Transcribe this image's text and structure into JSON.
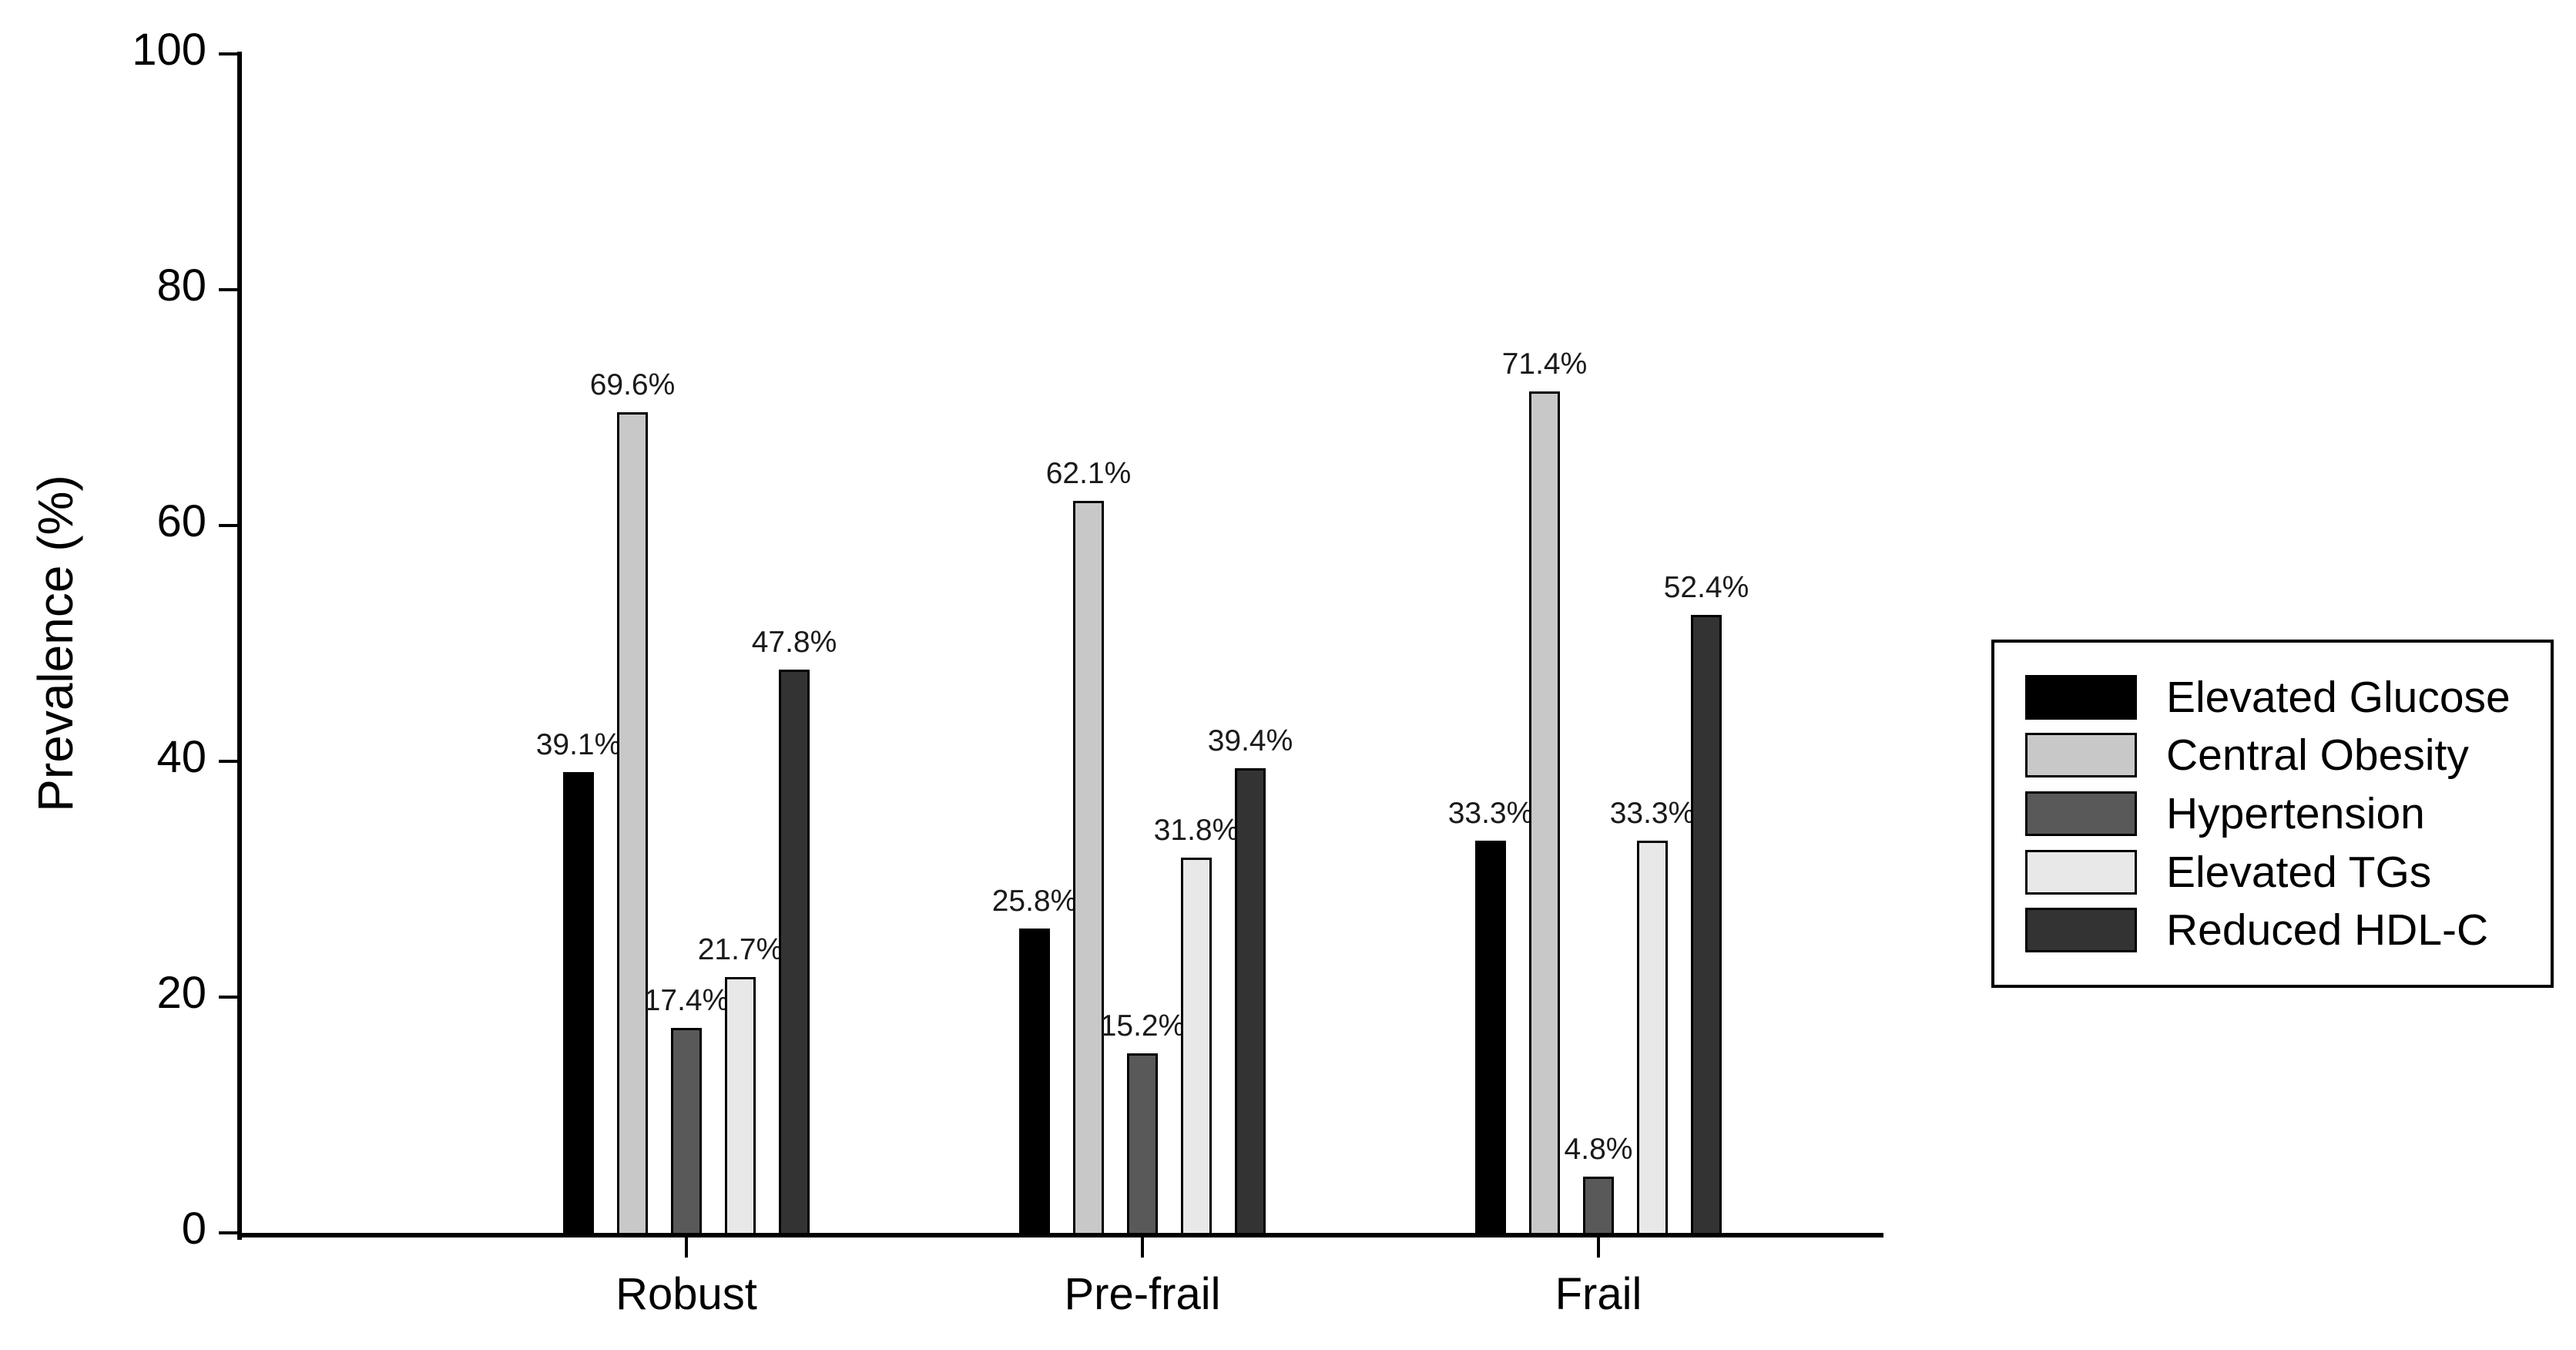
{
  "chart_data": {
    "type": "bar",
    "title": "",
    "xlabel": "",
    "ylabel": "Prevalence (%)",
    "ylim": [
      0,
      100
    ],
    "yticks": [
      0,
      20,
      40,
      60,
      80,
      100
    ],
    "grid": false,
    "background": "#ffffff",
    "axis_color": "#000000",
    "bar_outline_color": "#000000",
    "categories": [
      "Robust",
      "Pre-frail",
      "Frail"
    ],
    "series": [
      {
        "name": "Elevated Glucose",
        "color": "#000000",
        "values": [
          39.1,
          25.8,
          33.3
        ],
        "data_labels": [
          "39.1%",
          "25.8%",
          "33.3%"
        ]
      },
      {
        "name": "Central Obesity",
        "color": "#c8c8c8",
        "values": [
          69.6,
          62.1,
          71.4
        ],
        "data_labels": [
          "69.6%",
          "62.1%",
          "71.4%"
        ]
      },
      {
        "name": "Hypertension",
        "color": "#595959",
        "values": [
          17.4,
          15.2,
          4.8
        ],
        "data_labels": [
          "17.4%",
          "15.2%",
          "4.8%"
        ]
      },
      {
        "name": "Elevated TGs",
        "color": "#e8e8e8",
        "values": [
          21.7,
          31.8,
          33.3
        ],
        "data_labels": [
          "21.7%",
          "31.8%",
          "33.3%"
        ]
      },
      {
        "name": "Reduced HDL-C",
        "color": "#333333",
        "values": [
          47.8,
          39.4,
          52.4
        ],
        "data_labels": [
          "47.8%",
          "39.4%",
          "52.4%"
        ]
      }
    ],
    "legend": {
      "position": "right",
      "entries": [
        "Elevated Glucose",
        "Central Obesity",
        "Hypertension",
        "Elevated TGs",
        "Reduced HDL-C"
      ]
    }
  }
}
